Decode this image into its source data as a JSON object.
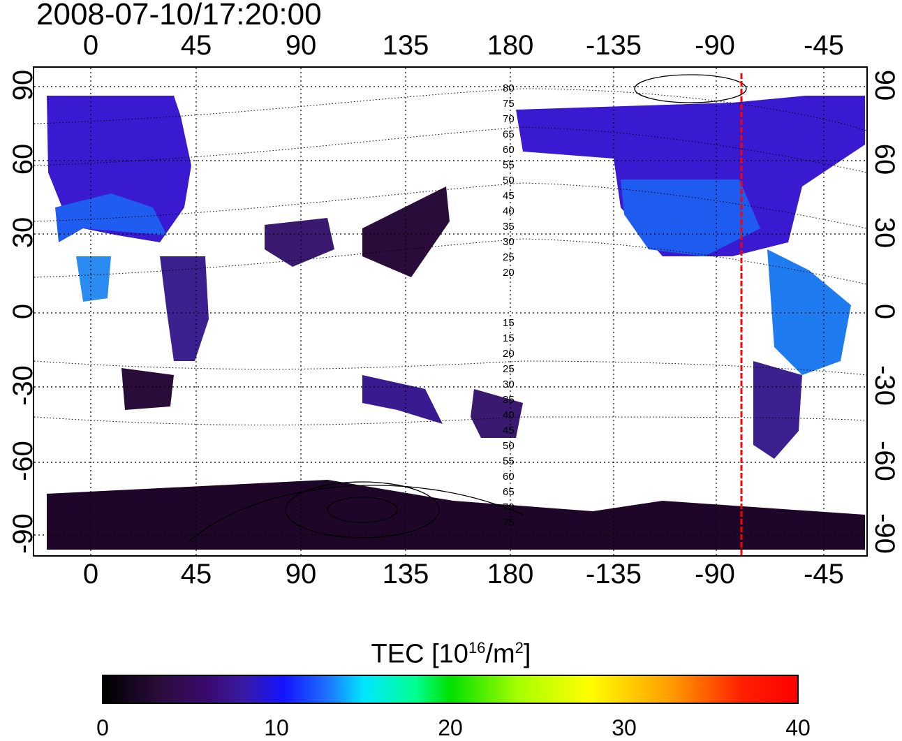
{
  "timestamp": "2008-07-10/17:20:00",
  "map": {
    "type": "global TEC map",
    "lon_ticks": [
      "0",
      "45",
      "90",
      "135",
      "180",
      "-135",
      "-90",
      "-45"
    ],
    "lat_ticks": [
      "90",
      "60",
      "30",
      "0",
      "-30",
      "-60",
      "-90"
    ],
    "contour_labels": [
      "80",
      "75",
      "70",
      "65",
      "60",
      "55",
      "50",
      "45",
      "40",
      "35",
      "30",
      "25",
      "20",
      "15",
      "15",
      "20",
      "25",
      "30",
      "35",
      "40",
      "45",
      "50",
      "55",
      "60",
      "65",
      "70",
      "75"
    ],
    "marker_longitude": "-80",
    "marker_color": "#ff0000"
  },
  "colorbar": {
    "title_main": "TEC  [10",
    "title_exp": "16",
    "title_unit": "/m",
    "title_exp2": "2",
    "title_end": "]",
    "ticks": [
      "0",
      "10",
      "20",
      "30",
      "40"
    ],
    "range": [
      0,
      40
    ]
  }
}
